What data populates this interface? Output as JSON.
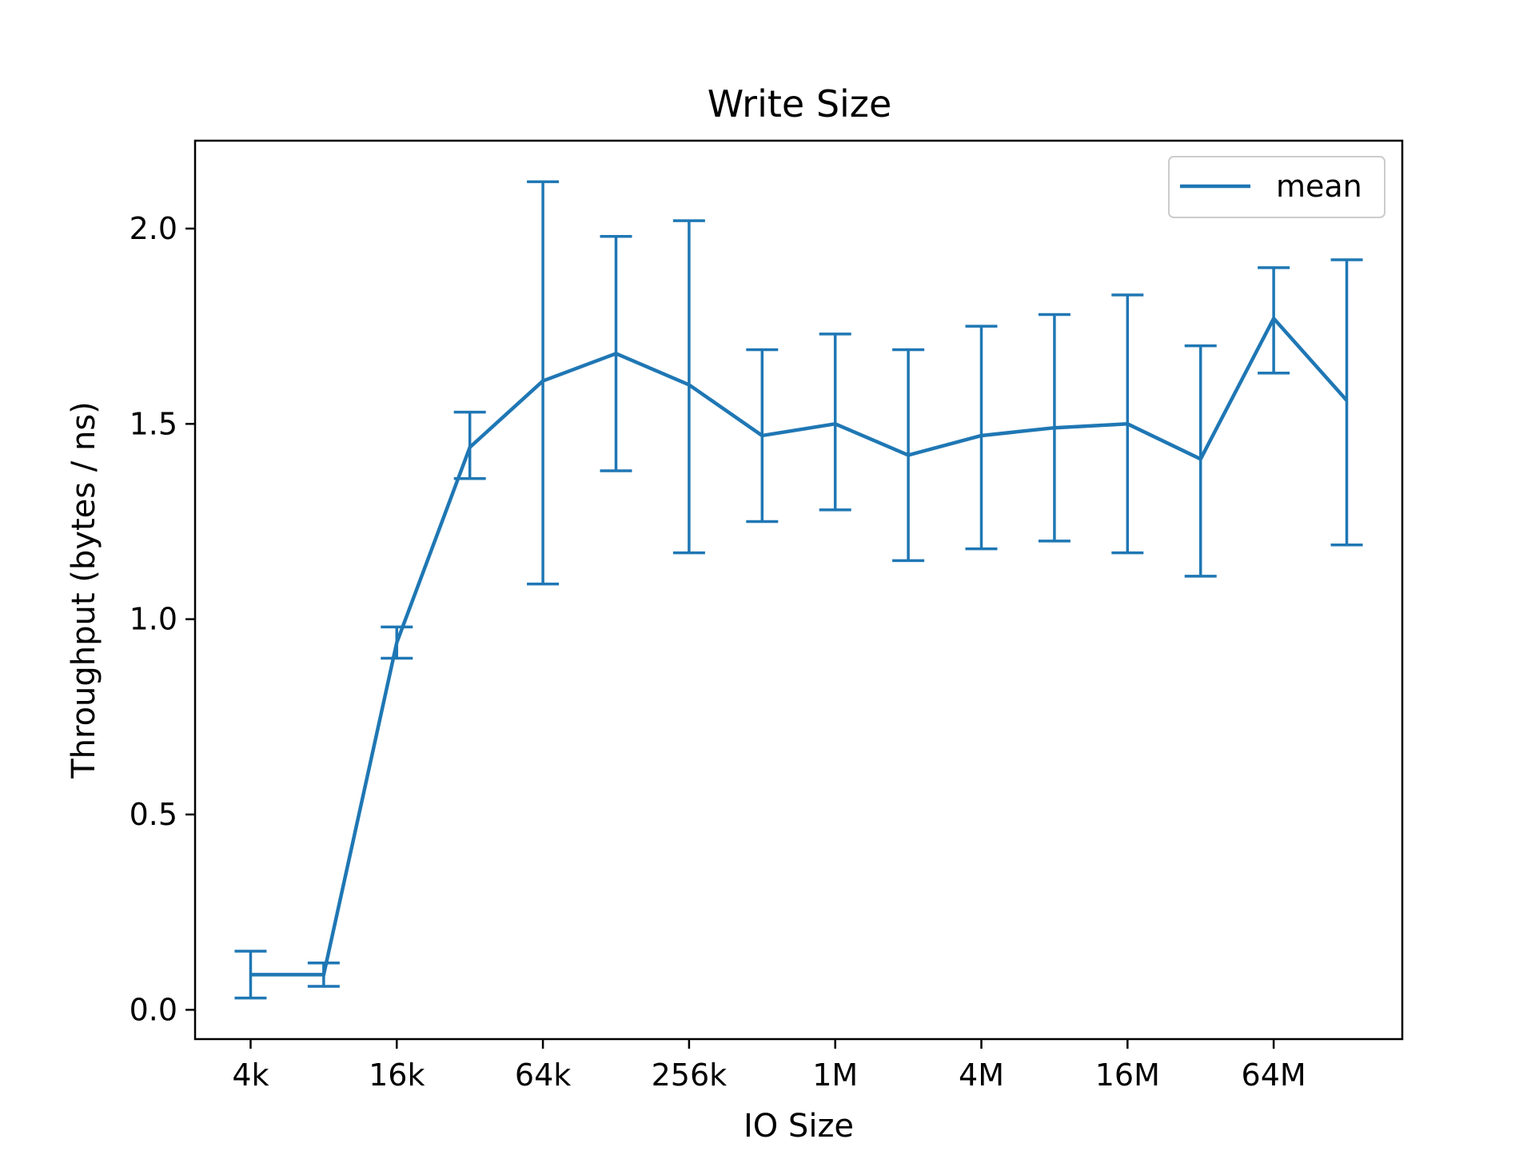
{
  "chart_data": {
    "type": "line",
    "title": "Write Size",
    "xlabel": "IO Size",
    "ylabel": "Throughput (bytes / ns)",
    "x_scale": "log2",
    "x_tick_labels": [
      "4k",
      "16k",
      "64k",
      "256k",
      "1M",
      "4M",
      "16M",
      "64M"
    ],
    "x_tick_exponents": [
      12,
      14,
      16,
      18,
      20,
      22,
      24,
      26
    ],
    "x_exponent_range": [
      11.24,
      27.76
    ],
    "y_ticks": [
      0.0,
      0.5,
      1.0,
      1.5,
      2.0
    ],
    "y_tick_labels": [
      "0.0",
      "0.5",
      "1.0",
      "1.5",
      "2.0"
    ],
    "ylim": [
      -0.075,
      2.225
    ],
    "grid": false,
    "legend_position": "top-right",
    "colors": {
      "series": "#1f77b4",
      "axes": "#000000",
      "legend_border": "#cccccc"
    },
    "series": [
      {
        "name": "mean",
        "x_exponents": [
          12,
          13,
          14,
          15,
          16,
          17,
          18,
          19,
          20,
          21,
          22,
          23,
          24,
          25,
          26,
          27
        ],
        "values": [
          0.09,
          0.09,
          0.94,
          1.44,
          1.61,
          1.68,
          1.6,
          1.47,
          1.5,
          1.42,
          1.47,
          1.49,
          1.5,
          1.41,
          1.77,
          1.56
        ],
        "error_low": [
          0.03,
          0.06,
          0.9,
          1.36,
          1.09,
          1.38,
          1.17,
          1.25,
          1.28,
          1.15,
          1.18,
          1.2,
          1.17,
          1.11,
          1.63,
          1.19
        ],
        "error_high": [
          0.15,
          0.12,
          0.98,
          1.53,
          2.12,
          1.98,
          2.02,
          1.69,
          1.73,
          1.69,
          1.75,
          1.78,
          1.83,
          1.7,
          1.9,
          1.92
        ]
      }
    ]
  }
}
